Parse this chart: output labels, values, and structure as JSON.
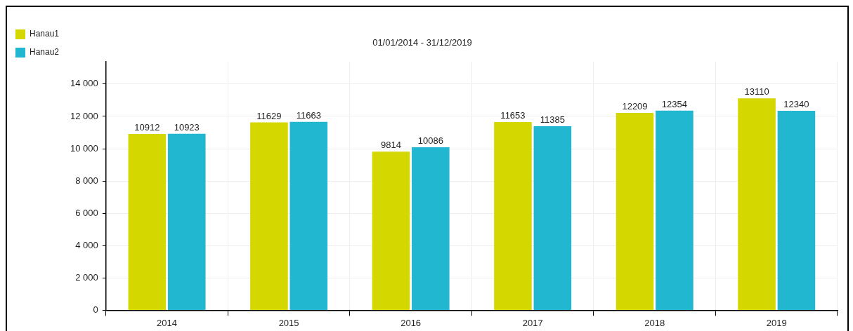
{
  "chart_data": {
    "type": "bar",
    "title": "01/01/2014 - 31/12/2019",
    "categories": [
      "2014",
      "2015",
      "2016",
      "2017",
      "2018",
      "2019"
    ],
    "series": [
      {
        "name": "Hanau1",
        "color": "#d4d700",
        "values": [
          10912,
          11629,
          9814,
          11653,
          12209,
          13110
        ]
      },
      {
        "name": "Hanau2",
        "color": "#21b7d0",
        "values": [
          10923,
          11663,
          10086,
          11385,
          12354,
          12340
        ]
      }
    ],
    "ylim": [
      0,
      15400
    ],
    "yticks": [
      0,
      {
        "value": 2000,
        "label": "2 000"
      },
      {
        "value": 4000,
        "label": "4 000"
      },
      {
        "value": 6000,
        "label": "6 000"
      },
      {
        "value": 8000,
        "label": "8 000"
      },
      {
        "value": 10000,
        "label": "10 000"
      },
      {
        "value": 12000,
        "label": "12 000"
      },
      {
        "value": 14000,
        "label": "14 000"
      }
    ],
    "grid": true,
    "legend": "top left",
    "data_labels": true
  }
}
